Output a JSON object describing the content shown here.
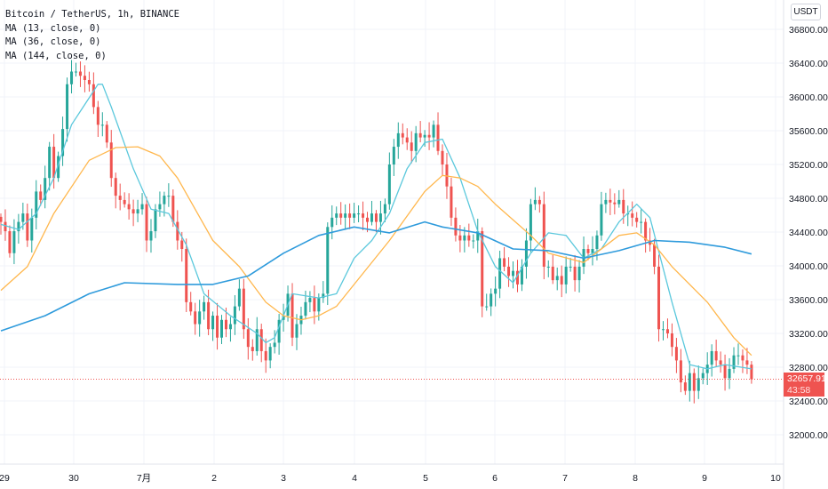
{
  "legend": {
    "symbol": "Bitcoin / TetherUS, 1h, BINANCE",
    "ma1": "MA (13, close, 0)",
    "ma2": "MA (36, close, 0)",
    "ma3": "MA (144, close, 0)"
  },
  "currency_button": "USDT",
  "last_price": {
    "value": "32657.91",
    "countdown": "43:58",
    "color": "#ef5350"
  },
  "colors": {
    "up": "#26a69a",
    "down": "#ef5350",
    "ma13": "#5bc8dc",
    "ma36": "#ffb74d",
    "ma144": "#2f9bdc",
    "grid": "#f0f3fa"
  },
  "chart_data": {
    "type": "candlestick",
    "title": "Bitcoin / TetherUS, 1h, BINANCE",
    "ylim": [
      31700,
      37050
    ],
    "y_ticks": [
      "36800.00",
      "36400.00",
      "36000.00",
      "35600.00",
      "35200.00",
      "34800.00",
      "34400.00",
      "34000.00",
      "33600.00",
      "33200.00",
      "32800.00",
      "32400.00",
      "32000.00"
    ],
    "x_ticks": [
      "29",
      "30",
      "7月",
      "2",
      "3",
      "4",
      "5",
      "6",
      "7",
      "8",
      "9",
      "10"
    ],
    "grid": true,
    "closes": [
      34520,
      34410,
      34150,
      34410,
      34520,
      34620,
      34300,
      34570,
      34880,
      34780,
      35040,
      35410,
      35040,
      35300,
      35620,
      36150,
      36300,
      36300,
      36250,
      36200,
      36150,
      35880,
      35670,
      35670,
      35460,
      35040,
      34830,
      34780,
      34730,
      34670,
      34620,
      34670,
      34730,
      34300,
      34410,
      34670,
      34730,
      34830,
      34830,
      34520,
      34300,
      34200,
      33570,
      33460,
      33310,
      33460,
      33570,
      33250,
      33410,
      33150,
      33360,
      33250,
      33310,
      33520,
      33730,
      33250,
      33040,
      32990,
      33250,
      32990,
      32880,
      33040,
      33090,
      33360,
      33410,
      33670,
      33150,
      33310,
      33410,
      33570,
      33620,
      33460,
      33620,
      33670,
      34460,
      34570,
      34620,
      34570,
      34620,
      34570,
      34620,
      34620,
      34570,
      34520,
      34620,
      34520,
      34620,
      34730,
      35200,
      35410,
      35570,
      35520,
      35460,
      35360,
      35570,
      35520,
      35550,
      35520,
      35670,
      35360,
      35200,
      34940,
      34570,
      34360,
      34300,
      34360,
      34300,
      34300,
      34410,
      33520,
      33520,
      33670,
      33730,
      34090,
      33990,
      33880,
      33940,
      33780,
      33990,
      34300,
      34730,
      34780,
      34730,
      33990,
      33990,
      33830,
      33880,
      33780,
      33990,
      33990,
      33830,
      33990,
      34200,
      34150,
      34200,
      34360,
      34730,
      34780,
      34750,
      34730,
      34780,
      34620,
      34620,
      34570,
      34520,
      34520,
      34300,
      34250,
      33990,
      33250,
      33250,
      33200,
      33040,
      32880,
      32620,
      32520,
      32730,
      32520,
      32670,
      32730,
      32830,
      32990,
      32880,
      32830,
      32670,
      32780,
      32940,
      32940,
      32880,
      32830,
      32658
    ],
    "series": [
      {
        "name": "MA (13, close, 0)",
        "points": [
          [
            0,
            34490
          ],
          [
            4,
            34430
          ],
          [
            8,
            34620
          ],
          [
            12,
            35040
          ],
          [
            16,
            35670
          ],
          [
            20,
            35990
          ],
          [
            22,
            36150
          ],
          [
            23,
            36150
          ],
          [
            25,
            35880
          ],
          [
            30,
            35150
          ],
          [
            34,
            34670
          ],
          [
            38,
            34620
          ],
          [
            42,
            34250
          ],
          [
            46,
            33670
          ],
          [
            52,
            33410
          ],
          [
            58,
            33200
          ],
          [
            60,
            33090
          ],
          [
            62,
            33150
          ],
          [
            66,
            33670
          ],
          [
            72,
            33620
          ],
          [
            76,
            33670
          ],
          [
            80,
            34090
          ],
          [
            84,
            34300
          ],
          [
            88,
            34620
          ],
          [
            92,
            35150
          ],
          [
            96,
            35460
          ],
          [
            100,
            35500
          ],
          [
            104,
            35040
          ],
          [
            108,
            34410
          ],
          [
            112,
            33990
          ],
          [
            116,
            33800
          ],
          [
            120,
            34150
          ],
          [
            124,
            34390
          ],
          [
            128,
            34360
          ],
          [
            132,
            34090
          ],
          [
            136,
            34200
          ],
          [
            140,
            34520
          ],
          [
            144,
            34730
          ],
          [
            147,
            34570
          ],
          [
            152,
            33570
          ],
          [
            156,
            32830
          ],
          [
            160,
            32780
          ],
          [
            164,
            32830
          ],
          [
            170,
            32780
          ]
        ]
      },
      {
        "name": "MA (36, close, 0)",
        "points": [
          [
            0,
            33710
          ],
          [
            6,
            33990
          ],
          [
            12,
            34620
          ],
          [
            20,
            35250
          ],
          [
            26,
            35400
          ],
          [
            31,
            35410
          ],
          [
            36,
            35300
          ],
          [
            40,
            35040
          ],
          [
            48,
            34300
          ],
          [
            54,
            33990
          ],
          [
            60,
            33570
          ],
          [
            64,
            33410
          ],
          [
            68,
            33360
          ],
          [
            72,
            33410
          ],
          [
            76,
            33520
          ],
          [
            80,
            33780
          ],
          [
            88,
            34300
          ],
          [
            96,
            34880
          ],
          [
            100,
            35070
          ],
          [
            104,
            35040
          ],
          [
            108,
            34940
          ],
          [
            112,
            34730
          ],
          [
            120,
            34360
          ],
          [
            124,
            34150
          ],
          [
            132,
            34040
          ],
          [
            140,
            34360
          ],
          [
            144,
            34390
          ],
          [
            148,
            34250
          ],
          [
            152,
            33990
          ],
          [
            160,
            33570
          ],
          [
            166,
            33150
          ],
          [
            170,
            32940
          ]
        ]
      },
      {
        "name": "MA (144, close, 0)",
        "points": [
          [
            0,
            33230
          ],
          [
            10,
            33410
          ],
          [
            20,
            33670
          ],
          [
            28,
            33800
          ],
          [
            40,
            33780
          ],
          [
            48,
            33780
          ],
          [
            56,
            33880
          ],
          [
            64,
            34150
          ],
          [
            72,
            34360
          ],
          [
            80,
            34460
          ],
          [
            88,
            34390
          ],
          [
            96,
            34520
          ],
          [
            100,
            34460
          ],
          [
            108,
            34390
          ],
          [
            116,
            34200
          ],
          [
            124,
            34180
          ],
          [
            132,
            34090
          ],
          [
            140,
            34180
          ],
          [
            148,
            34300
          ],
          [
            156,
            34280
          ],
          [
            164,
            34220
          ],
          [
            170,
            34140
          ]
        ]
      }
    ]
  }
}
